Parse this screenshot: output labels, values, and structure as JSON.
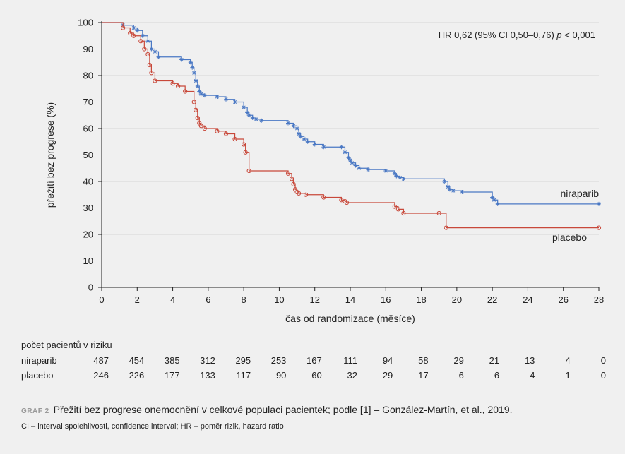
{
  "chart_data": {
    "type": "line",
    "subtype": "kaplan-meier step",
    "xlabel": "čas od randomizace (měsíce)",
    "ylabel": "přežití bez progrese (%)",
    "xlim": [
      0,
      28
    ],
    "ylim": [
      0,
      100
    ],
    "xticks": [
      "0",
      "2",
      "4",
      "6",
      "8",
      "10",
      "12",
      "14",
      "16",
      "18",
      "20",
      "22",
      "24",
      "26",
      "28"
    ],
    "yticks": [
      "0",
      "10",
      "20",
      "30",
      "40",
      "50",
      "60",
      "70",
      "80",
      "90",
      "100"
    ],
    "reference_line": {
      "y": 50,
      "style": "dashed"
    },
    "annotation": "HR 0,62 (95% CI 0,50–0,76) p < 0,001",
    "grid": "horizontal",
    "series": [
      {
        "name": "niraparib",
        "color": "#4a78c4",
        "marker": "asterisk",
        "x": [
          0,
          1.2,
          1.8,
          2.0,
          2.3,
          2.6,
          2.8,
          3.0,
          3.2,
          4.5,
          5.0,
          5.1,
          5.2,
          5.3,
          5.4,
          5.5,
          5.6,
          5.8,
          6.5,
          7.0,
          7.5,
          8.0,
          8.2,
          8.3,
          8.5,
          8.7,
          9.0,
          10.5,
          10.8,
          11.0,
          11.1,
          11.2,
          11.4,
          11.6,
          12.0,
          12.5,
          13.5,
          13.7,
          13.9,
          14.0,
          14.1,
          14.3,
          14.5,
          15.0,
          16.0,
          16.5,
          16.6,
          16.8,
          17.0,
          19.3,
          19.5,
          19.6,
          19.8,
          20.3,
          22.0,
          22.1,
          22.3,
          28.0
        ],
        "y": [
          100,
          99,
          98,
          97,
          95,
          93,
          90,
          89,
          87,
          86,
          85,
          83,
          81,
          78,
          76,
          74,
          73,
          72.5,
          72,
          71,
          70,
          68,
          66,
          65,
          64,
          63.5,
          63,
          62,
          61,
          60,
          58,
          57,
          56,
          55,
          54,
          53,
          53,
          51,
          49,
          48,
          47,
          46,
          45,
          44.5,
          44,
          43,
          42,
          41.5,
          41,
          40,
          38,
          37,
          36.5,
          36,
          34,
          33,
          31.5,
          31.5
        ]
      },
      {
        "name": "placebo",
        "color": "#c8483a",
        "marker": "circle",
        "x": [
          0,
          1.2,
          1.6,
          1.8,
          2.2,
          2.4,
          2.6,
          2.7,
          2.8,
          3.0,
          4.0,
          4.3,
          4.7,
          5.2,
          5.3,
          5.4,
          5.5,
          5.6,
          5.8,
          6.5,
          7.0,
          7.5,
          8.0,
          8.1,
          8.3,
          10.5,
          10.7,
          10.8,
          10.9,
          11.0,
          11.1,
          11.5,
          12.5,
          13.5,
          13.7,
          13.8,
          16.5,
          16.7,
          17.0,
          19.0,
          19.4,
          28.0
        ],
        "y": [
          100,
          98,
          96,
          95,
          93,
          90,
          88,
          84,
          81,
          78,
          77,
          76,
          74,
          70,
          67,
          64,
          62,
          61,
          60,
          59,
          58,
          56,
          54,
          51,
          44,
          43,
          41,
          39,
          37,
          36,
          35.5,
          35,
          34,
          33,
          32.5,
          32,
          30.5,
          29.5,
          28,
          28,
          22.5,
          22.5
        ]
      }
    ],
    "series_labels": [
      "niraparib",
      "placebo"
    ]
  },
  "risk_table": {
    "title": "počet pacientů v riziku",
    "times": [
      "0",
      "2",
      "4",
      "6",
      "8",
      "10",
      "12",
      "14",
      "16",
      "18",
      "20",
      "22",
      "24",
      "26",
      "28"
    ],
    "rows": [
      {
        "name": "niraparib",
        "values": [
          "487",
          "454",
          "385",
          "312",
          "295",
          "253",
          "167",
          "111",
          "94",
          "58",
          "29",
          "21",
          "13",
          "4",
          "0"
        ]
      },
      {
        "name": "placebo",
        "values": [
          "246",
          "226",
          "177",
          "133",
          "117",
          "90",
          "60",
          "32",
          "29",
          "17",
          "6",
          "6",
          "4",
          "1",
          "0"
        ]
      }
    ]
  },
  "caption": {
    "tag": "GRAF 2",
    "text": "Přežití bez progrese onemocnění v celkové populaci pacientek; podle [1] – González-Martín, et al., 2019.",
    "note": "CI – interval spolehlivosti, confidence interval; HR – poměr rizik, hazard ratio"
  }
}
